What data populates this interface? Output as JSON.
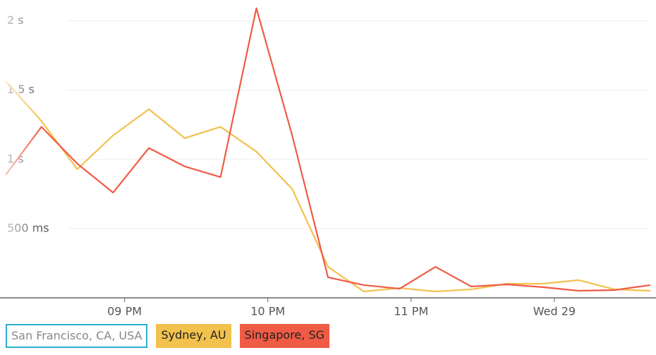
{
  "chart_data": {
    "type": "line",
    "x": [
      20.17,
      20.42,
      20.67,
      20.92,
      21.17,
      21.42,
      21.67,
      21.92,
      22.17,
      22.42,
      22.67,
      22.92,
      23.17,
      23.42,
      23.67,
      23.92,
      24.17,
      24.42,
      24.67
    ],
    "xlim": [
      20.17,
      24.66
    ],
    "xticks": [
      {
        "value": 21,
        "label": "09 PM"
      },
      {
        "value": 22,
        "label": "10 PM"
      },
      {
        "value": 23,
        "label": "11 PM"
      },
      {
        "value": 24,
        "label": "Wed 29"
      }
    ],
    "ylim": [
      0,
      2100
    ],
    "yticks": [
      {
        "value": 500,
        "label": "500 ms"
      },
      {
        "value": 1000,
        "label": "1 s"
      },
      {
        "value": 1500,
        "label": "1.5 s"
      },
      {
        "value": 2000,
        "label": "2 s"
      }
    ],
    "grid": true,
    "series": [
      {
        "name": "San Francisco, CA, USA",
        "color": "#2bb0cc",
        "visible": false
      },
      {
        "name": "Sydney, AU",
        "color": "#f2c14e",
        "visible": true,
        "values": [
          1566,
          1276,
          929,
          1173,
          1362,
          1153,
          1235,
          1056,
          786,
          224,
          46,
          71,
          46,
          61,
          102,
          102,
          128,
          61,
          51
        ]
      },
      {
        "name": "Singapore, SG",
        "color": "#ef5b45",
        "visible": true,
        "values": [
          888,
          1235,
          969,
          760,
          1082,
          949,
          872,
          2092,
          1173,
          148,
          92,
          66,
          224,
          82,
          97,
          77,
          51,
          56,
          92
        ]
      }
    ]
  }
}
